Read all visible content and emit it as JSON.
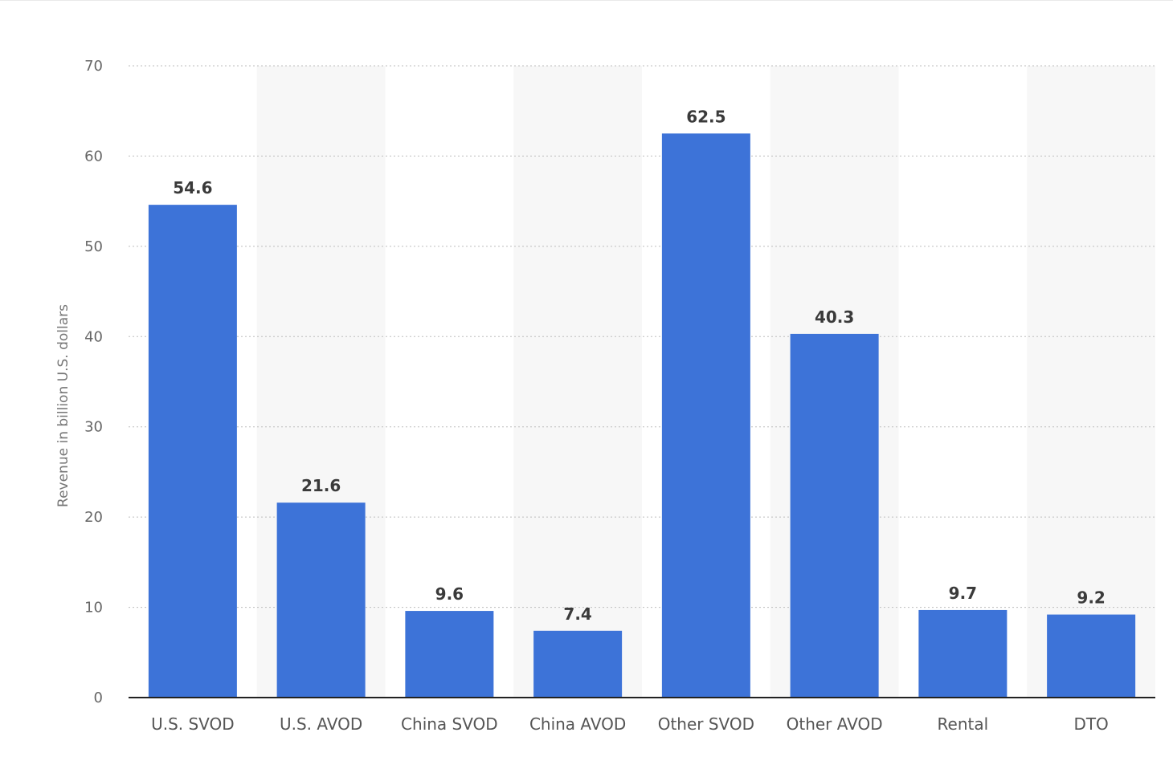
{
  "chart_data": {
    "type": "bar",
    "title": "",
    "xlabel": "",
    "ylabel": "Revenue in billion U.S. dollars",
    "ylim": [
      0,
      70
    ],
    "yticks": [
      0,
      10,
      20,
      30,
      40,
      50,
      60,
      70
    ],
    "grid": true,
    "categories": [
      "U.S. SVOD",
      "U.S. AVOD",
      "China SVOD",
      "China AVOD",
      "Other SVOD",
      "Other AVOD",
      "Rental",
      "DTO"
    ],
    "values": [
      54.6,
      21.6,
      9.6,
      7.4,
      62.5,
      40.3,
      9.7,
      9.2
    ],
    "value_labels": [
      "54.6",
      "21.6",
      "9.6",
      "7.4",
      "62.5",
      "40.3",
      "9.7",
      "9.2"
    ],
    "colors": {
      "bar": "#3d73d8",
      "band": "#f7f7f7",
      "grid": "#bdbdbd",
      "baseline": "#222222"
    }
  }
}
